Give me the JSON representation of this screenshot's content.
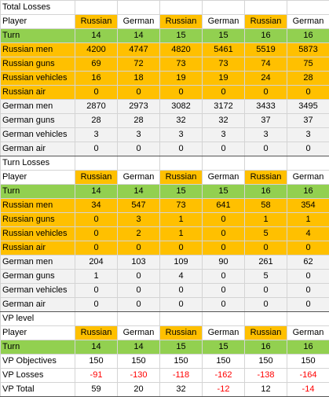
{
  "sections": [
    {
      "title": "Total Losses",
      "header": [
        "Player",
        "Russian",
        "German",
        "Russian",
        "German",
        "Russian",
        "German"
      ],
      "rows": [
        {
          "type": "turn",
          "label": "Turn",
          "values": [
            "14",
            "14",
            "15",
            "15",
            "16",
            "16"
          ]
        },
        {
          "type": "ru",
          "label": "Russian men",
          "values": [
            "4200",
            "4747",
            "4820",
            "5461",
            "5519",
            "5873"
          ]
        },
        {
          "type": "ru",
          "label": "Russian guns",
          "values": [
            "69",
            "72",
            "73",
            "73",
            "74",
            "75"
          ]
        },
        {
          "type": "ru",
          "label": "Russian vehicles",
          "values": [
            "16",
            "18",
            "19",
            "19",
            "24",
            "28"
          ]
        },
        {
          "type": "ru",
          "label": "Russian air",
          "values": [
            "0",
            "0",
            "0",
            "0",
            "0",
            "0"
          ]
        },
        {
          "type": "gr",
          "label": "German men",
          "values": [
            "2870",
            "2973",
            "3082",
            "3172",
            "3433",
            "3495"
          ]
        },
        {
          "type": "gr",
          "label": "German guns",
          "values": [
            "28",
            "28",
            "32",
            "32",
            "37",
            "37"
          ]
        },
        {
          "type": "gr",
          "label": "German vehicles",
          "values": [
            "3",
            "3",
            "3",
            "3",
            "3",
            "3"
          ]
        },
        {
          "type": "gr",
          "label": "German air",
          "values": [
            "0",
            "0",
            "0",
            "0",
            "0",
            "0"
          ]
        }
      ]
    },
    {
      "title": "Turn Losses",
      "header": [
        "Player",
        "Russian",
        "German",
        "Russian",
        "German",
        "Russian",
        "German"
      ],
      "rows": [
        {
          "type": "turn",
          "label": "Turn",
          "values": [
            "14",
            "14",
            "15",
            "15",
            "16",
            "16"
          ]
        },
        {
          "type": "ru",
          "label": "Russian men",
          "values": [
            "34",
            "547",
            "73",
            "641",
            "58",
            "354"
          ]
        },
        {
          "type": "ru",
          "label": "Russian guns",
          "values": [
            "0",
            "3",
            "1",
            "0",
            "1",
            "1"
          ]
        },
        {
          "type": "ru",
          "label": "Russian vehicles",
          "values": [
            "0",
            "2",
            "1",
            "0",
            "5",
            "4"
          ]
        },
        {
          "type": "ru",
          "label": "Russian air",
          "values": [
            "0",
            "0",
            "0",
            "0",
            "0",
            "0"
          ]
        },
        {
          "type": "gr",
          "label": "German men",
          "values": [
            "204",
            "103",
            "109",
            "90",
            "261",
            "62"
          ]
        },
        {
          "type": "gr",
          "label": "German guns",
          "values": [
            "1",
            "0",
            "4",
            "0",
            "5",
            "0"
          ]
        },
        {
          "type": "gr",
          "label": "German vehicles",
          "values": [
            "0",
            "0",
            "0",
            "0",
            "0",
            "0"
          ]
        },
        {
          "type": "gr",
          "label": "German air",
          "values": [
            "0",
            "0",
            "0",
            "0",
            "0",
            "0"
          ]
        }
      ]
    },
    {
      "title": "VP level",
      "header": [
        "Player",
        "Russian",
        "German",
        "Russian",
        "German",
        "Russian",
        "German"
      ],
      "rows": [
        {
          "type": "turn",
          "label": "Turn",
          "values": [
            "14",
            "14",
            "15",
            "15",
            "16",
            "16"
          ]
        },
        {
          "type": "vp",
          "label": "VP Objectives",
          "values": [
            "150",
            "150",
            "150",
            "150",
            "150",
            "150"
          ]
        },
        {
          "type": "vp",
          "label": "VP Losses",
          "values": [
            "-91",
            "-130",
            "-118",
            "-162",
            "-138",
            "-164"
          ]
        },
        {
          "type": "vp",
          "label": "VP Total",
          "values": [
            "59",
            "20",
            "32",
            "-12",
            "12",
            "-14"
          ]
        }
      ]
    }
  ],
  "colors": {
    "russian": "#ffc000",
    "turn": "#92d050",
    "german_rows": "#f2f2f2",
    "negative": "#ff0000"
  }
}
